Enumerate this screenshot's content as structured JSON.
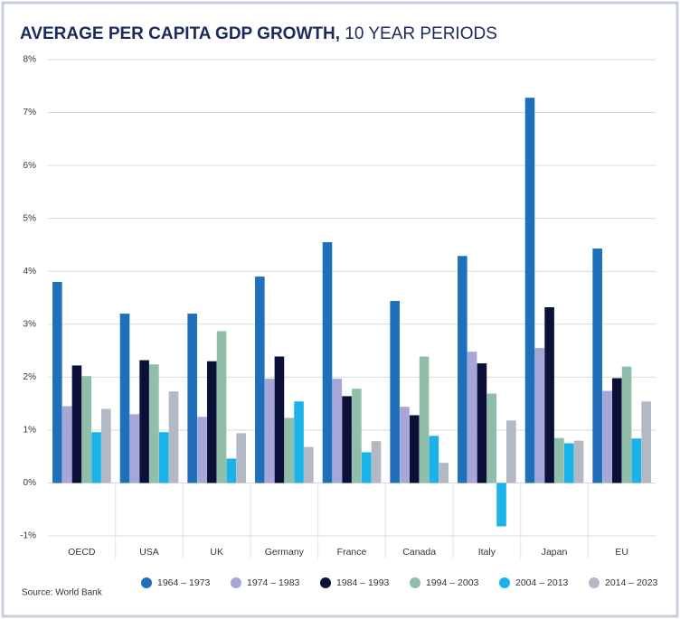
{
  "chart_data": {
    "type": "bar",
    "title": "AVERAGE PER CAPITA GDP GROWTH,",
    "subtitle": "10 YEAR PERIODS",
    "source": "Source: World Bank",
    "categories": [
      "OECD",
      "USA",
      "UK",
      "Germany",
      "France",
      "Canada",
      "Italy",
      "Japan",
      "EU"
    ],
    "series": [
      {
        "name": "1964 – 1973",
        "color": "#1f6fba",
        "values": [
          3.8,
          3.2,
          3.2,
          3.9,
          4.55,
          3.44,
          4.29,
          7.28,
          4.43
        ]
      },
      {
        "name": "1974 – 1983",
        "color": "#a7a6d8",
        "values": [
          1.45,
          1.3,
          1.25,
          1.97,
          1.97,
          1.44,
          2.48,
          2.55,
          1.74
        ]
      },
      {
        "name": "1984 – 1993",
        "color": "#0b1038",
        "values": [
          2.22,
          2.32,
          2.3,
          2.39,
          1.64,
          1.28,
          2.26,
          3.32,
          1.98
        ]
      },
      {
        "name": "1994 – 2003",
        "color": "#8fbfa8",
        "values": [
          2.02,
          2.24,
          2.87,
          1.23,
          1.78,
          2.39,
          1.69,
          0.85,
          2.2
        ]
      },
      {
        "name": "2004 – 2013",
        "color": "#1ab2e8",
        "values": [
          0.96,
          0.96,
          0.46,
          1.54,
          0.58,
          0.89,
          -0.82,
          0.75,
          0.84
        ]
      },
      {
        "name": "2014 – 2023",
        "color": "#b2b8c4",
        "values": [
          1.4,
          1.73,
          0.94,
          0.68,
          0.79,
          0.38,
          1.18,
          0.8,
          1.54
        ]
      }
    ],
    "ylim": [
      -1,
      8
    ],
    "yticks": [
      {
        "value": -1,
        "label": "-1%"
      },
      {
        "value": 0,
        "label": "0%"
      },
      {
        "value": 1,
        "label": "1%"
      },
      {
        "value": 2,
        "label": "2%"
      },
      {
        "value": 3,
        "label": "3%"
      },
      {
        "value": 4,
        "label": "4%"
      },
      {
        "value": 5,
        "label": "5%"
      },
      {
        "value": 6,
        "label": "6%"
      },
      {
        "value": 7,
        "label": "7%"
      },
      {
        "value": 8,
        "label": "8%"
      }
    ],
    "grid": true
  }
}
